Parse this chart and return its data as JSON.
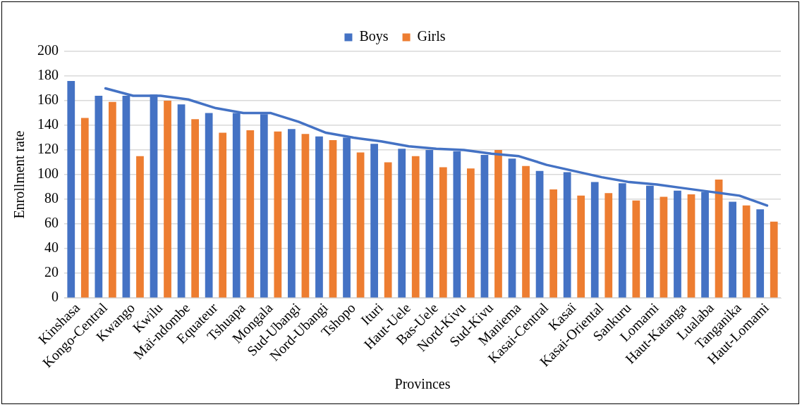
{
  "chart_data": {
    "type": "bar",
    "xlabel": "Provinces",
    "ylabel": "Enrollment rate",
    "categories": [
      "Kinshasa",
      "Kongo-Central",
      "Kwango",
      "Kwilu",
      "Maï-ndombe",
      "Equateur",
      "Tshuapa",
      "Mongala",
      "Sud-Ubangi",
      "Nord-Ubangi",
      "Tshopo",
      "Ituri",
      "Haut-Uele",
      "Bas-Uele",
      "Nord-Kivu",
      "Sud-Kivu",
      "Maniema",
      "Kasai-Central",
      "Kasaï",
      "Kasai-Oriental",
      "Sankuru",
      "Lomami",
      "Haut-Katanga",
      "Lualaba",
      "Tanganika",
      "Haut-Lomami"
    ],
    "series": [
      {
        "name": "Boys",
        "color": "#4472c4",
        "values": [
          176,
          164,
          164,
          165,
          157,
          150,
          150,
          149,
          137,
          131,
          130,
          125,
          121,
          120,
          119,
          116,
          113,
          103,
          102,
          94,
          93,
          91,
          87,
          86,
          78,
          72
        ]
      },
      {
        "name": "Girls",
        "color": "#ed7d31",
        "values": [
          146,
          159,
          115,
          160,
          145,
          134,
          136,
          135,
          133,
          128,
          118,
          110,
          115,
          106,
          105,
          120,
          107,
          88,
          83,
          85,
          79,
          82,
          84,
          96,
          75,
          62
        ]
      },
      {
        "type": "line",
        "color": "#4472c4",
        "values": [
          null,
          170,
          164,
          164,
          161,
          154,
          150,
          150,
          143,
          134,
          130,
          127,
          123,
          121,
          120,
          117,
          115,
          108,
          103,
          98,
          94,
          92,
          89,
          86,
          83,
          75
        ]
      }
    ],
    "ylim": [
      0,
      200
    ],
    "yticks": [
      0,
      20,
      40,
      60,
      80,
      100,
      120,
      140,
      160,
      180,
      200
    ],
    "grid": "y",
    "legend": "top",
    "marker": "none"
  }
}
